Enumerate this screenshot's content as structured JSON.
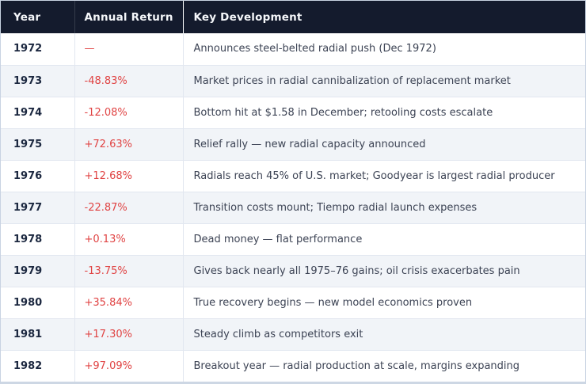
{
  "table": {
    "columns": [
      {
        "key": "year",
        "label": "Year"
      },
      {
        "key": "annual_return",
        "label": "Annual Return"
      },
      {
        "key": "key_development",
        "label": "Key Development"
      }
    ],
    "rows": [
      {
        "year": "1972",
        "annual_return": "—",
        "key_development": "Announces steel-belted radial push (Dec 1972)"
      },
      {
        "year": "1973",
        "annual_return": "-48.83%",
        "key_development": "Market prices in radial cannibalization of replacement market"
      },
      {
        "year": "1974",
        "annual_return": "-12.08%",
        "key_development": "Bottom hit at $1.58 in December; retooling costs escalate"
      },
      {
        "year": "1975",
        "annual_return": "+72.63%",
        "key_development": "Relief rally — new radial capacity announced"
      },
      {
        "year": "1976",
        "annual_return": "+12.68%",
        "key_development": "Radials reach 45% of U.S. market; Goodyear is largest radial producer"
      },
      {
        "year": "1977",
        "annual_return": "-22.87%",
        "key_development": "Transition costs mount; Tiempo radial launch expenses"
      },
      {
        "year": "1978",
        "annual_return": "+0.13%",
        "key_development": "Dead money — flat performance"
      },
      {
        "year": "1979",
        "annual_return": "-13.75%",
        "key_development": "Gives back nearly all 1975–76 gains; oil crisis exacerbates pain"
      },
      {
        "year": "1980",
        "annual_return": "+35.84%",
        "key_development": "True recovery begins — new model economics proven"
      },
      {
        "year": "1981",
        "annual_return": "+17.30%",
        "key_development": "Steady climb as competitors exit"
      },
      {
        "year": "1982",
        "annual_return": "+97.09%",
        "key_development": "Breakout year — radial production at scale, margins expanding"
      }
    ]
  },
  "colors": {
    "header_bg": "#141b2d",
    "header_text": "#f5f7fa",
    "year_text": "#1c2840",
    "return_red": "#e04343",
    "dev_text": "#3c4354",
    "stripe_bg": "#f1f4f8",
    "row_border": "#e2e7f0",
    "outer_border": "#c9d3e2"
  },
  "chart_data": {
    "type": "table",
    "title": "",
    "columns": [
      "Year",
      "Annual Return",
      "Key Development"
    ],
    "rows": [
      [
        "1972",
        "—",
        "Announces steel-belted radial push (Dec 1972)"
      ],
      [
        "1973",
        "-48.83%",
        "Market prices in radial cannibalization of replacement market"
      ],
      [
        "1974",
        "-12.08%",
        "Bottom hit at $1.58 in December; retooling costs escalate"
      ],
      [
        "1975",
        "+72.63%",
        "Relief rally — new radial capacity announced"
      ],
      [
        "1976",
        "+12.68%",
        "Radials reach 45% of U.S. market; Goodyear is largest radial producer"
      ],
      [
        "1977",
        "-22.87%",
        "Transition costs mount; Tiempo radial launch expenses"
      ],
      [
        "1978",
        "+0.13%",
        "Dead money — flat performance"
      ],
      [
        "1979",
        "-13.75%",
        "Gives back nearly all 1975–76 gains; oil crisis exacerbates pain"
      ],
      [
        "1980",
        "+35.84%",
        "True recovery begins — new model economics proven"
      ],
      [
        "1981",
        "+17.30%",
        "Steady climb as competitors exit"
      ],
      [
        "1982",
        "+97.09%",
        "Breakout year — radial production at scale, margins expanding"
      ]
    ],
    "annual_return_values_pct": [
      null,
      -48.83,
      -12.08,
      72.63,
      12.68,
      -22.87,
      0.13,
      -13.75,
      35.84,
      17.3,
      97.09
    ]
  }
}
